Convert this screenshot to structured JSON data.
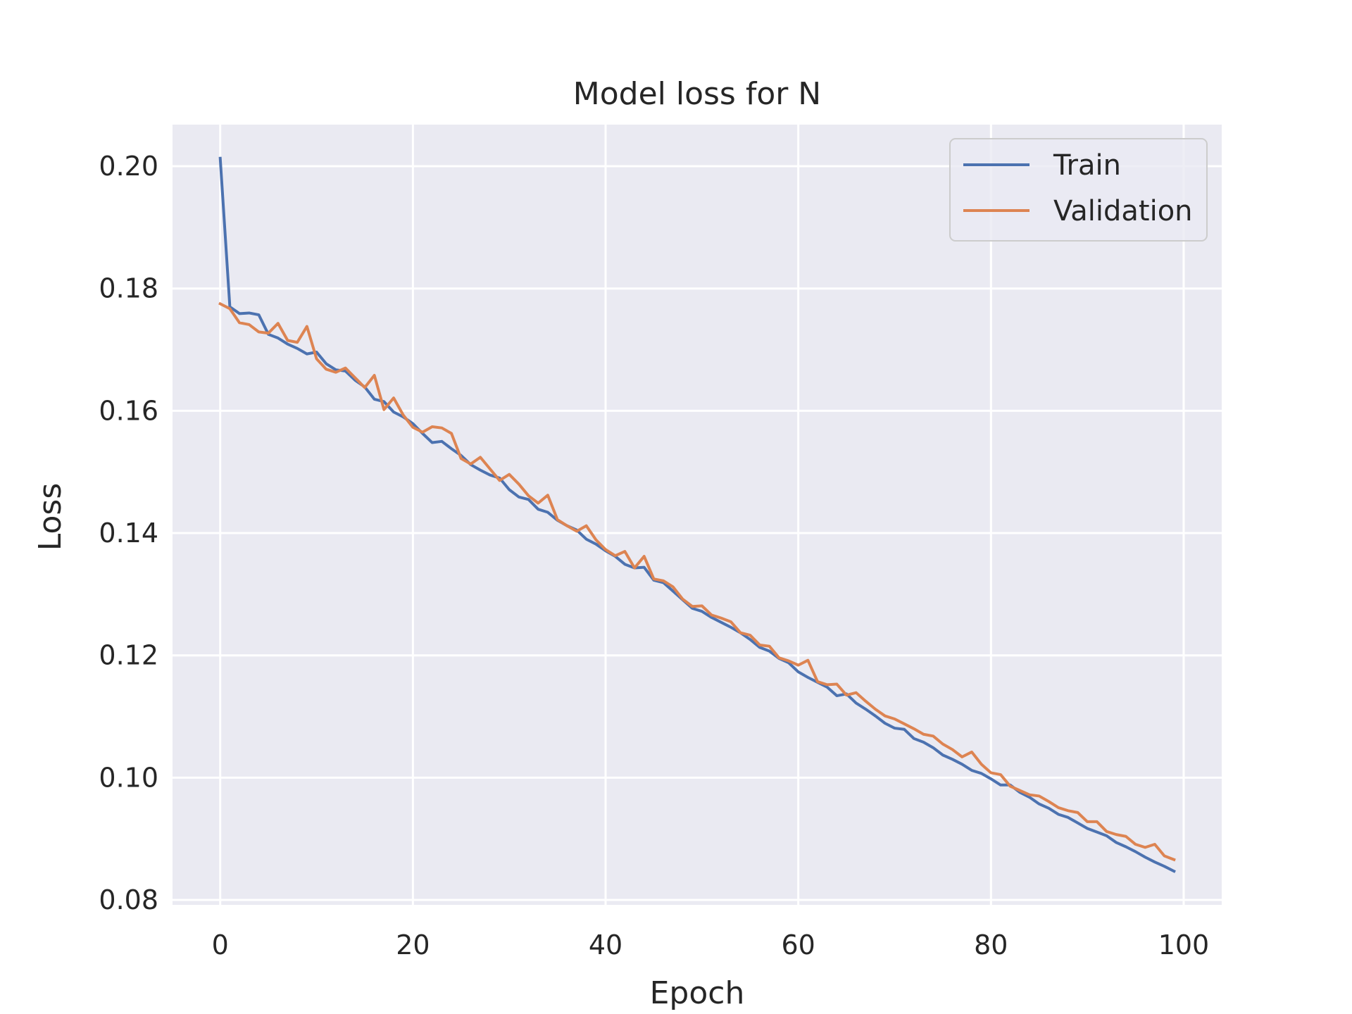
{
  "chart_data": {
    "type": "line",
    "title": "Model loss for N",
    "xlabel": "Epoch",
    "ylabel": "Loss",
    "xlim": [
      -4.95,
      103.95
    ],
    "ylim": [
      0.0792,
      0.2068
    ],
    "xticks": [
      0,
      20,
      40,
      60,
      80,
      100
    ],
    "yticks": [
      0.08,
      0.1,
      0.12,
      0.14,
      0.16,
      0.18,
      0.2
    ],
    "xtick_labels": [
      "0",
      "20",
      "40",
      "60",
      "80",
      "100"
    ],
    "ytick_labels": [
      "0.08",
      "0.10",
      "0.12",
      "0.14",
      "0.16",
      "0.18",
      "0.20"
    ],
    "grid": true,
    "legend_position": "upper right",
    "series": [
      {
        "name": "Train",
        "color": "#4c72b0",
        "values": [
          0.2013,
          0.177,
          0.1759,
          0.176,
          0.1757,
          0.1725,
          0.1719,
          0.1709,
          0.1702,
          0.1693,
          0.1696,
          0.1677,
          0.1667,
          0.1665,
          0.165,
          0.1639,
          0.1619,
          0.1615,
          0.1598,
          0.159,
          0.1579,
          0.1563,
          0.1548,
          0.155,
          0.1538,
          0.1527,
          0.1512,
          0.1503,
          0.1495,
          0.149,
          0.1471,
          0.1459,
          0.1455,
          0.1439,
          0.1434,
          0.1421,
          0.1412,
          0.1405,
          0.139,
          0.1382,
          0.1371,
          0.1362,
          0.1349,
          0.1343,
          0.1344,
          0.1323,
          0.1319,
          0.1305,
          0.1291,
          0.1277,
          0.1272,
          0.1262,
          0.1254,
          0.1246,
          0.1237,
          0.1226,
          0.1213,
          0.1207,
          0.1195,
          0.1188,
          0.1173,
          0.1164,
          0.1156,
          0.1148,
          0.1134,
          0.1137,
          0.1122,
          0.1112,
          0.1101,
          0.1089,
          0.1081,
          0.1079,
          0.1064,
          0.1058,
          0.1049,
          0.1037,
          0.103,
          0.1022,
          0.1012,
          0.1007,
          0.0998,
          0.0988,
          0.0988,
          0.0976,
          0.0968,
          0.0957,
          0.095,
          0.094,
          0.0935,
          0.0926,
          0.0917,
          0.0911,
          0.0905,
          0.0894,
          0.0887,
          0.0879,
          0.087,
          0.0862,
          0.0855,
          0.0847
        ]
      },
      {
        "name": "Validation",
        "color": "#dd8452",
        "values": [
          0.1775,
          0.1767,
          0.1744,
          0.1741,
          0.1729,
          0.1727,
          0.1743,
          0.1715,
          0.1712,
          0.1738,
          0.1685,
          0.1668,
          0.1663,
          0.167,
          0.1654,
          0.1638,
          0.1658,
          0.1602,
          0.1621,
          0.1593,
          0.1573,
          0.1565,
          0.1574,
          0.1572,
          0.1563,
          0.1522,
          0.1513,
          0.1524,
          0.1505,
          0.1486,
          0.1496,
          0.148,
          0.1461,
          0.1449,
          0.1462,
          0.1422,
          0.1412,
          0.1403,
          0.1412,
          0.1389,
          0.1373,
          0.1363,
          0.137,
          0.1343,
          0.1362,
          0.1325,
          0.1322,
          0.1312,
          0.1292,
          0.128,
          0.1281,
          0.1266,
          0.1261,
          0.1255,
          0.1237,
          0.1233,
          0.1217,
          0.1215,
          0.1196,
          0.1191,
          0.1184,
          0.1192,
          0.1157,
          0.1152,
          0.1153,
          0.1135,
          0.1139,
          0.1125,
          0.1112,
          0.1101,
          0.1096,
          0.1088,
          0.108,
          0.1071,
          0.1068,
          0.1055,
          0.1046,
          0.1034,
          0.1042,
          0.1022,
          0.1008,
          0.1005,
          0.0986,
          0.0979,
          0.0972,
          0.097,
          0.0961,
          0.0951,
          0.0946,
          0.0943,
          0.0928,
          0.0928,
          0.0912,
          0.0907,
          0.0904,
          0.0891,
          0.0886,
          0.0891,
          0.0872,
          0.0866
        ]
      }
    ]
  }
}
